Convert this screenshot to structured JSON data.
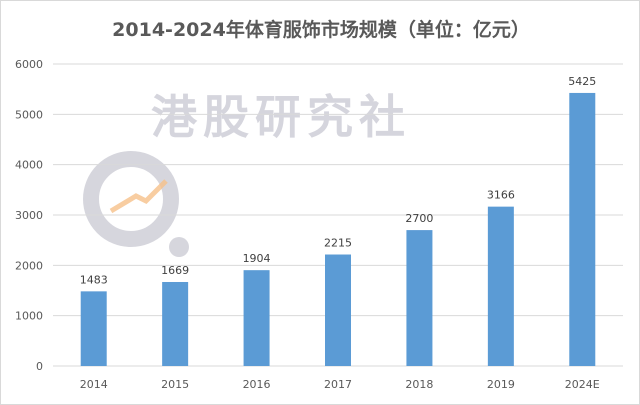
{
  "chart_data": {
    "type": "bar",
    "title": "2014-2024年体育服饰市场规模（单位：亿元）",
    "categories": [
      "2014",
      "2015",
      "2016",
      "2017",
      "2018",
      "2019",
      "2024E"
    ],
    "values": [
      1483,
      1669,
      1904,
      2215,
      2700,
      3166,
      5425
    ],
    "yticks": [
      "0",
      "1000",
      "2000",
      "3000",
      "4000",
      "5000",
      "6000"
    ],
    "ylim": [
      0,
      6000
    ],
    "xlabel": "",
    "ylabel": "",
    "grid": true,
    "bar_color": "#5b9bd5"
  },
  "watermark": "港股研究社"
}
